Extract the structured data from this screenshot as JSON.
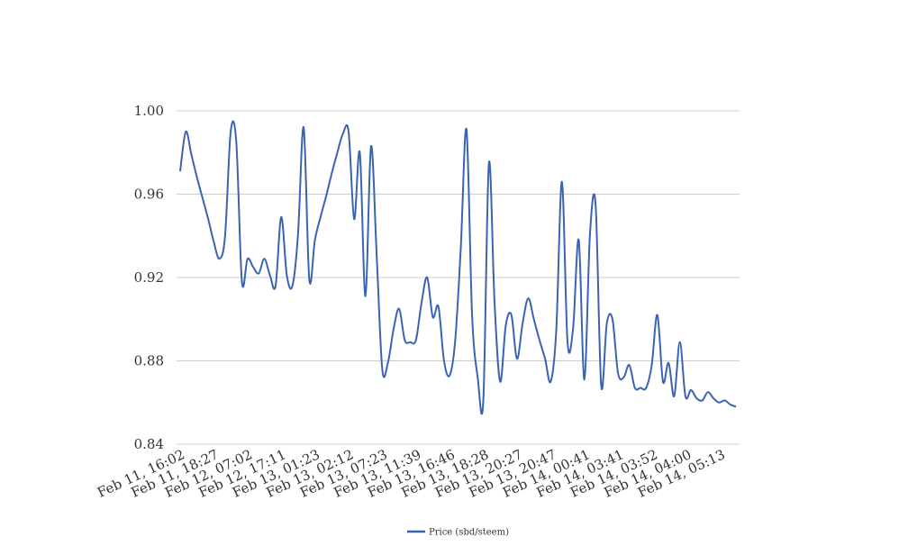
{
  "chart_data": {
    "type": "line",
    "title": "",
    "xlabel": "",
    "ylabel": "",
    "ylim": [
      0.84,
      1.0
    ],
    "yticks": [
      "0.84",
      "0.88",
      "0.92",
      "0.96",
      "1.00"
    ],
    "ytick_values": [
      0.84,
      0.88,
      0.92,
      0.96,
      1.0
    ],
    "xtick_labels": [
      "Feb 11, 16:02",
      "Feb 11, 18:27",
      "Feb 12, 07:02",
      "Feb 12, 17:11",
      "Feb 13, 01:23",
      "Feb 13, 02:12",
      "Feb 13, 07:23",
      "Feb 13, 11:39",
      "Feb 13, 16:46",
      "Feb 13, 18:28",
      "Feb 13, 20:27",
      "Feb 13, 20:47",
      "Feb 14, 00:41",
      "Feb 14, 03:41",
      "Feb 14, 03:52",
      "Feb 14, 04:00",
      "Feb 14, 05:13"
    ],
    "grid": true,
    "legend_position": "bottom",
    "series": [
      {
        "name": "Price (sbd/steem)",
        "color": "#3a63b3",
        "values": [
          0.971,
          0.99,
          0.979,
          0.968,
          0.958,
          0.948,
          0.937,
          0.929,
          0.94,
          0.99,
          0.985,
          0.918,
          0.929,
          0.925,
          0.922,
          0.929,
          0.921,
          0.916,
          0.949,
          0.921,
          0.916,
          0.941,
          0.992,
          0.919,
          0.938,
          0.949,
          0.959,
          0.97,
          0.98,
          0.989,
          0.99,
          0.948,
          0.98,
          0.911,
          0.983,
          0.931,
          0.876,
          0.879,
          0.895,
          0.905,
          0.89,
          0.889,
          0.89,
          0.908,
          0.92,
          0.901,
          0.906,
          0.88,
          0.873,
          0.89,
          0.935,
          0.991,
          0.902,
          0.872,
          0.861,
          0.975,
          0.908,
          0.87,
          0.897,
          0.902,
          0.881,
          0.898,
          0.91,
          0.9,
          0.89,
          0.881,
          0.87,
          0.895,
          0.966,
          0.889,
          0.896,
          0.938,
          0.871,
          0.941,
          0.955,
          0.868,
          0.898,
          0.9,
          0.874,
          0.872,
          0.878,
          0.867,
          0.867,
          0.867,
          0.878,
          0.902,
          0.87,
          0.879,
          0.863,
          0.889,
          0.863,
          0.866,
          0.862,
          0.861,
          0.865,
          0.862,
          0.86,
          0.861,
          0.859,
          0.858
        ]
      }
    ]
  }
}
